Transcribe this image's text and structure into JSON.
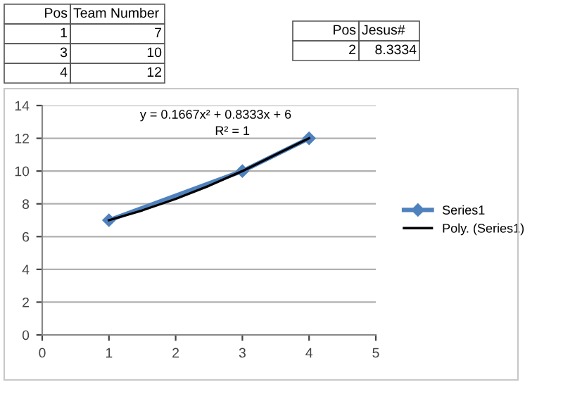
{
  "chart_data": {
    "type": "line",
    "x": [
      1,
      3,
      4
    ],
    "series": [
      {
        "name": "Series1",
        "color": "#4f81bd",
        "values": [
          7,
          10,
          12
        ],
        "marker": "diamond"
      },
      {
        "name": "Poly. (Series1)",
        "color": "#000000",
        "x": [
          1,
          1.5,
          2,
          2.5,
          3,
          3.5,
          4
        ],
        "values": [
          7,
          7.6,
          8.3,
          9.1,
          10,
          11,
          12
        ],
        "marker": "none"
      }
    ],
    "xlim": [
      0,
      5
    ],
    "xticks": [
      0,
      1,
      2,
      3,
      4,
      5
    ],
    "ylim": [
      0,
      14
    ],
    "yticks": [
      0,
      2,
      4,
      6,
      8,
      10,
      12,
      14
    ],
    "grid": "y",
    "legend": "right",
    "line_style": "solid",
    "annotations": [
      "y = 0.1667x² + 0.8333x + 6",
      "R² = 1",
      "Pos",
      "Team Number",
      "1",
      "7",
      "3",
      "10",
      "4",
      "12",
      "Pos",
      "Jesus#",
      "2",
      "8.3334"
    ]
  }
}
